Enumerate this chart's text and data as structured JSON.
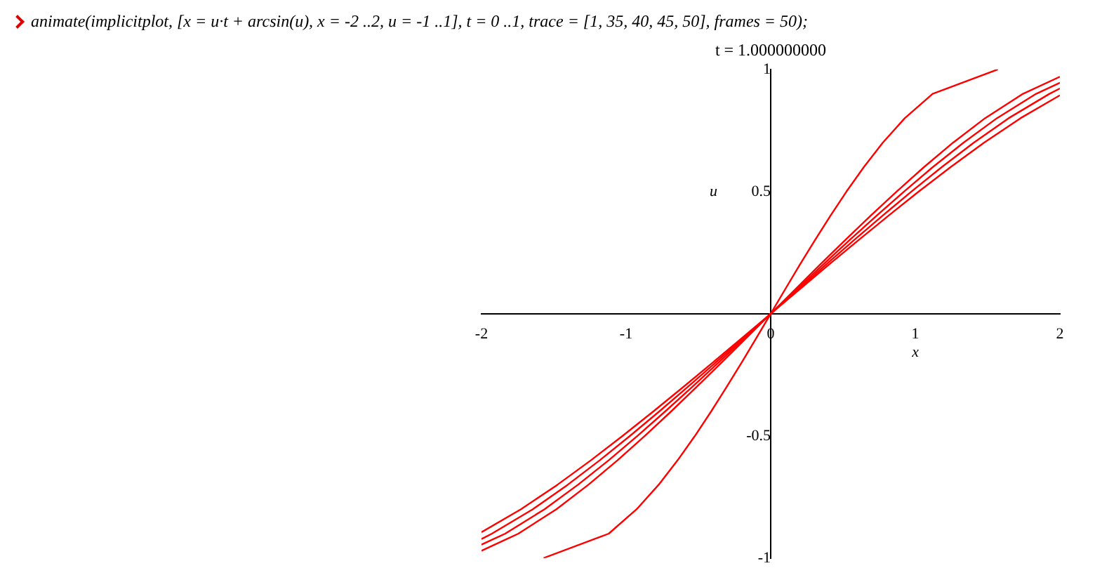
{
  "chart_data": {
    "type": "line",
    "title": "t = 1.000000000",
    "xlabel": "x",
    "ylabel": "u",
    "annotations": [
      "animate(implicitplot, [x = u·t + arcsin(u), x = -2 ..2, u = -1 ..1], t = 0 ..1, trace = [1, 35, 40, 45, 50], frames = 50);"
    ],
    "series": [
      {
        "color": "#ff0000",
        "x": [
          -1.571,
          -1.12,
          -0.927,
          -0.775,
          -0.644,
          -0.524,
          -0.412,
          -0.305,
          -0.201,
          -0.1,
          0,
          0.1,
          0.201,
          0.305,
          0.412,
          0.524,
          0.644,
          0.775,
          0.927,
          1.12,
          1.571
        ],
        "values": [
          -1,
          -0.9,
          -0.8,
          -0.7,
          -0.6,
          -0.5,
          -0.4,
          -0.3,
          -0.2,
          -0.1,
          0,
          0.1,
          0.2,
          0.3,
          0.4,
          0.5,
          0.6,
          0.7,
          0.8,
          0.9,
          1
        ]
      },
      {
        "color": "#ff0000",
        "x": [
          -2,
          -1.745,
          -1.482,
          -1.261,
          -1.06,
          -0.871,
          -0.689,
          -0.513,
          -0.34,
          -0.17,
          0,
          0.17,
          0.34,
          0.513,
          0.689,
          0.871,
          1.06,
          1.261,
          1.482,
          1.745,
          2
        ],
        "values": [
          -0.97,
          -0.9,
          -0.8,
          -0.7,
          -0.6,
          -0.5,
          -0.4,
          -0.3,
          -0.2,
          -0.1,
          0,
          0.1,
          0.2,
          0.3,
          0.4,
          0.5,
          0.6,
          0.7,
          0.8,
          0.9,
          0.97
        ]
      },
      {
        "color": "#ff0000",
        "x": [
          -2,
          -1.836,
          -1.564,
          -1.333,
          -1.121,
          -0.922,
          -0.73,
          -0.543,
          -0.361,
          -0.18,
          0,
          0.18,
          0.361,
          0.543,
          0.73,
          0.922,
          1.121,
          1.333,
          1.564,
          1.836,
          2
        ],
        "values": [
          -0.945,
          -0.9,
          -0.8,
          -0.7,
          -0.6,
          -0.5,
          -0.4,
          -0.3,
          -0.2,
          -0.1,
          0,
          0.1,
          0.2,
          0.3,
          0.4,
          0.5,
          0.6,
          0.7,
          0.8,
          0.9,
          0.945
        ]
      },
      {
        "color": "#ff0000",
        "x": [
          -2,
          -1.928,
          -1.645,
          -1.404,
          -1.183,
          -0.973,
          -0.771,
          -0.574,
          -0.381,
          -0.19,
          0,
          0.19,
          0.381,
          0.574,
          0.771,
          0.973,
          1.183,
          1.404,
          1.645,
          1.928,
          2
        ],
        "values": [
          -0.922,
          -0.9,
          -0.8,
          -0.7,
          -0.6,
          -0.5,
          -0.4,
          -0.3,
          -0.2,
          -0.1,
          0,
          0.1,
          0.2,
          0.3,
          0.4,
          0.5,
          0.6,
          0.7,
          0.8,
          0.9,
          0.922
        ]
      },
      {
        "color": "#ff0000",
        "x": [
          -2,
          -1.727,
          -1.475,
          -1.244,
          -1.024,
          -0.812,
          -0.605,
          -0.401,
          -0.2,
          0,
          0.2,
          0.401,
          0.605,
          0.812,
          1.024,
          1.244,
          1.475,
          1.727,
          2
        ],
        "values": [
          -0.894,
          -0.8,
          -0.7,
          -0.6,
          -0.5,
          -0.4,
          -0.3,
          -0.2,
          -0.1,
          0,
          0.1,
          0.2,
          0.3,
          0.4,
          0.5,
          0.6,
          0.7,
          0.8,
          0.894
        ]
      }
    ],
    "xlim": [
      -2,
      2
    ],
    "ylim": [
      -1,
      1
    ],
    "xticks": [
      -2,
      -1,
      0,
      1,
      2
    ],
    "yticks": [
      -1,
      -0.5,
      0.5,
      1
    ],
    "grid": false,
    "legend": false,
    "marker": "none",
    "line_style": "solid"
  }
}
